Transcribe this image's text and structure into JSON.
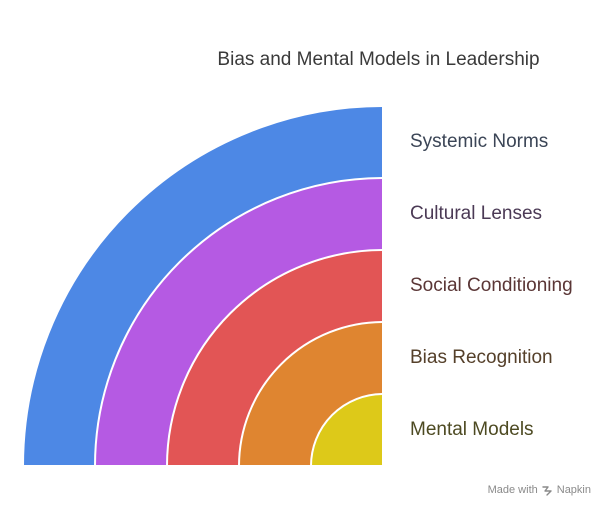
{
  "title": "Bias and Mental Models in Leadership",
  "layers": [
    {
      "label": "Systemic Norms",
      "color": "#4d88e5",
      "text_color": "#3b4556"
    },
    {
      "label": "Cultural Lenses",
      "color": "#b55ae3",
      "text_color": "#4b3a55"
    },
    {
      "label": "Social Conditioning",
      "color": "#e25555",
      "text_color": "#5a3636"
    },
    {
      "label": "Bias Recognition",
      "color": "#df8530",
      "text_color": "#55402a"
    },
    {
      "label": "Mental Models",
      "color": "#ddc919",
      "text_color": "#4d4a22"
    }
  ],
  "watermark": {
    "prefix": "Made with",
    "brand": "Napkin",
    "logo_icon": "napkin-logo-icon"
  }
}
